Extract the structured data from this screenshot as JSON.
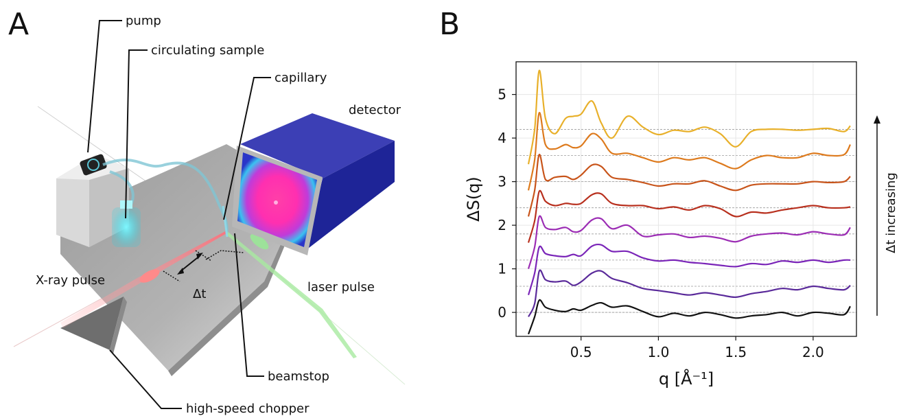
{
  "panel_a": {
    "letter": "A",
    "labels": {
      "pump": "pump",
      "circulating_sample": "circulating sample",
      "capillary": "capillary",
      "detector": "detector",
      "xray_pulse": "X-ray pulse",
      "delta_t": "Δt",
      "laser_pulse": "laser pulse",
      "beamstop": "beamstop",
      "chopper": "high-speed chopper"
    }
  },
  "panel_b": {
    "letter": "B",
    "arrow_label": "Δt increasing"
  },
  "chart_data": {
    "type": "line",
    "title": "",
    "xlabel": "q [Å⁻¹]",
    "ylabel": "ΔS(q)",
    "xlim": [
      0.08,
      2.28
    ],
    "ylim": [
      -0.55,
      5.75
    ],
    "xticks": [
      0.5,
      1.0,
      1.5,
      2.0
    ],
    "xtick_labels": [
      "0.5",
      "1.0",
      "1.5",
      "2.0"
    ],
    "yticks": [
      0,
      1,
      2,
      3,
      4,
      5
    ],
    "ytick_labels": [
      "0",
      "1",
      "2",
      "3",
      "4",
      "5"
    ],
    "grid": true,
    "baselines": [
      0,
      0.6,
      1.2,
      1.8,
      2.4,
      3.0,
      3.6,
      4.2
    ],
    "x": [
      0.16,
      0.2,
      0.23,
      0.27,
      0.33,
      0.4,
      0.45,
      0.5,
      0.57,
      0.63,
      0.7,
      0.8,
      0.9,
      1.0,
      1.1,
      1.2,
      1.3,
      1.4,
      1.5,
      1.6,
      1.7,
      1.8,
      1.9,
      2.0,
      2.1,
      2.2,
      2.24
    ],
    "series": [
      {
        "color": "#111111",
        "values": [
          -0.5,
          -0.1,
          0.28,
          0.12,
          0.05,
          0.02,
          0.08,
          0.05,
          0.16,
          0.22,
          0.12,
          0.15,
          0.02,
          -0.1,
          -0.02,
          -0.08,
          0.0,
          -0.05,
          -0.13,
          -0.08,
          -0.05,
          0.0,
          -0.08,
          0.0,
          -0.02,
          -0.05,
          0.14
        ]
      },
      {
        "color": "#5a2a9a",
        "values": [
          -0.1,
          0.2,
          0.95,
          0.75,
          0.7,
          0.72,
          0.62,
          0.7,
          0.9,
          0.95,
          0.78,
          0.68,
          0.55,
          0.5,
          0.45,
          0.4,
          0.45,
          0.4,
          0.35,
          0.43,
          0.48,
          0.55,
          0.52,
          0.6,
          0.55,
          0.52,
          0.62
        ]
      },
      {
        "color": "#7a25b8",
        "values": [
          0.4,
          0.9,
          1.5,
          1.35,
          1.3,
          1.28,
          1.33,
          1.3,
          1.52,
          1.55,
          1.4,
          1.4,
          1.25,
          1.18,
          1.2,
          1.15,
          1.12,
          1.08,
          1.05,
          1.12,
          1.1,
          1.18,
          1.15,
          1.2,
          1.15,
          1.2,
          1.2
        ]
      },
      {
        "color": "#9b2cb4",
        "values": [
          1.0,
          1.5,
          2.2,
          1.95,
          1.9,
          1.95,
          1.85,
          1.88,
          2.12,
          2.15,
          1.92,
          2.0,
          1.75,
          1.78,
          1.8,
          1.72,
          1.75,
          1.7,
          1.62,
          1.75,
          1.8,
          1.82,
          1.78,
          1.85,
          1.8,
          1.78,
          1.95
        ]
      },
      {
        "color": "#b8301e",
        "values": [
          1.6,
          2.1,
          2.78,
          2.55,
          2.45,
          2.5,
          2.48,
          2.5,
          2.7,
          2.72,
          2.5,
          2.45,
          2.45,
          2.38,
          2.42,
          2.35,
          2.45,
          2.38,
          2.2,
          2.3,
          2.28,
          2.35,
          2.4,
          2.45,
          2.4,
          2.4,
          2.42
        ]
      },
      {
        "color": "#c8541a",
        "values": [
          2.2,
          2.8,
          3.62,
          3.05,
          3.1,
          3.12,
          3.05,
          3.15,
          3.38,
          3.35,
          3.1,
          3.05,
          2.98,
          2.9,
          2.95,
          2.95,
          3.02,
          2.9,
          2.8,
          2.92,
          2.95,
          2.95,
          2.95,
          3.0,
          2.98,
          3.0,
          3.12
        ]
      },
      {
        "color": "#dd7a1d",
        "values": [
          2.8,
          3.5,
          4.58,
          3.85,
          3.75,
          3.85,
          3.78,
          3.82,
          4.1,
          3.98,
          3.65,
          3.65,
          3.55,
          3.45,
          3.55,
          3.5,
          3.55,
          3.42,
          3.3,
          3.5,
          3.6,
          3.55,
          3.55,
          3.65,
          3.6,
          3.62,
          3.85
        ]
      },
      {
        "color": "#e8b02a",
        "values": [
          3.4,
          4.2,
          5.55,
          4.45,
          4.1,
          4.45,
          4.5,
          4.55,
          4.85,
          4.35,
          4.0,
          4.5,
          4.25,
          4.08,
          4.18,
          4.15,
          4.25,
          4.1,
          3.8,
          4.15,
          4.2,
          4.2,
          4.18,
          4.2,
          4.22,
          4.15,
          4.28
        ]
      }
    ]
  }
}
